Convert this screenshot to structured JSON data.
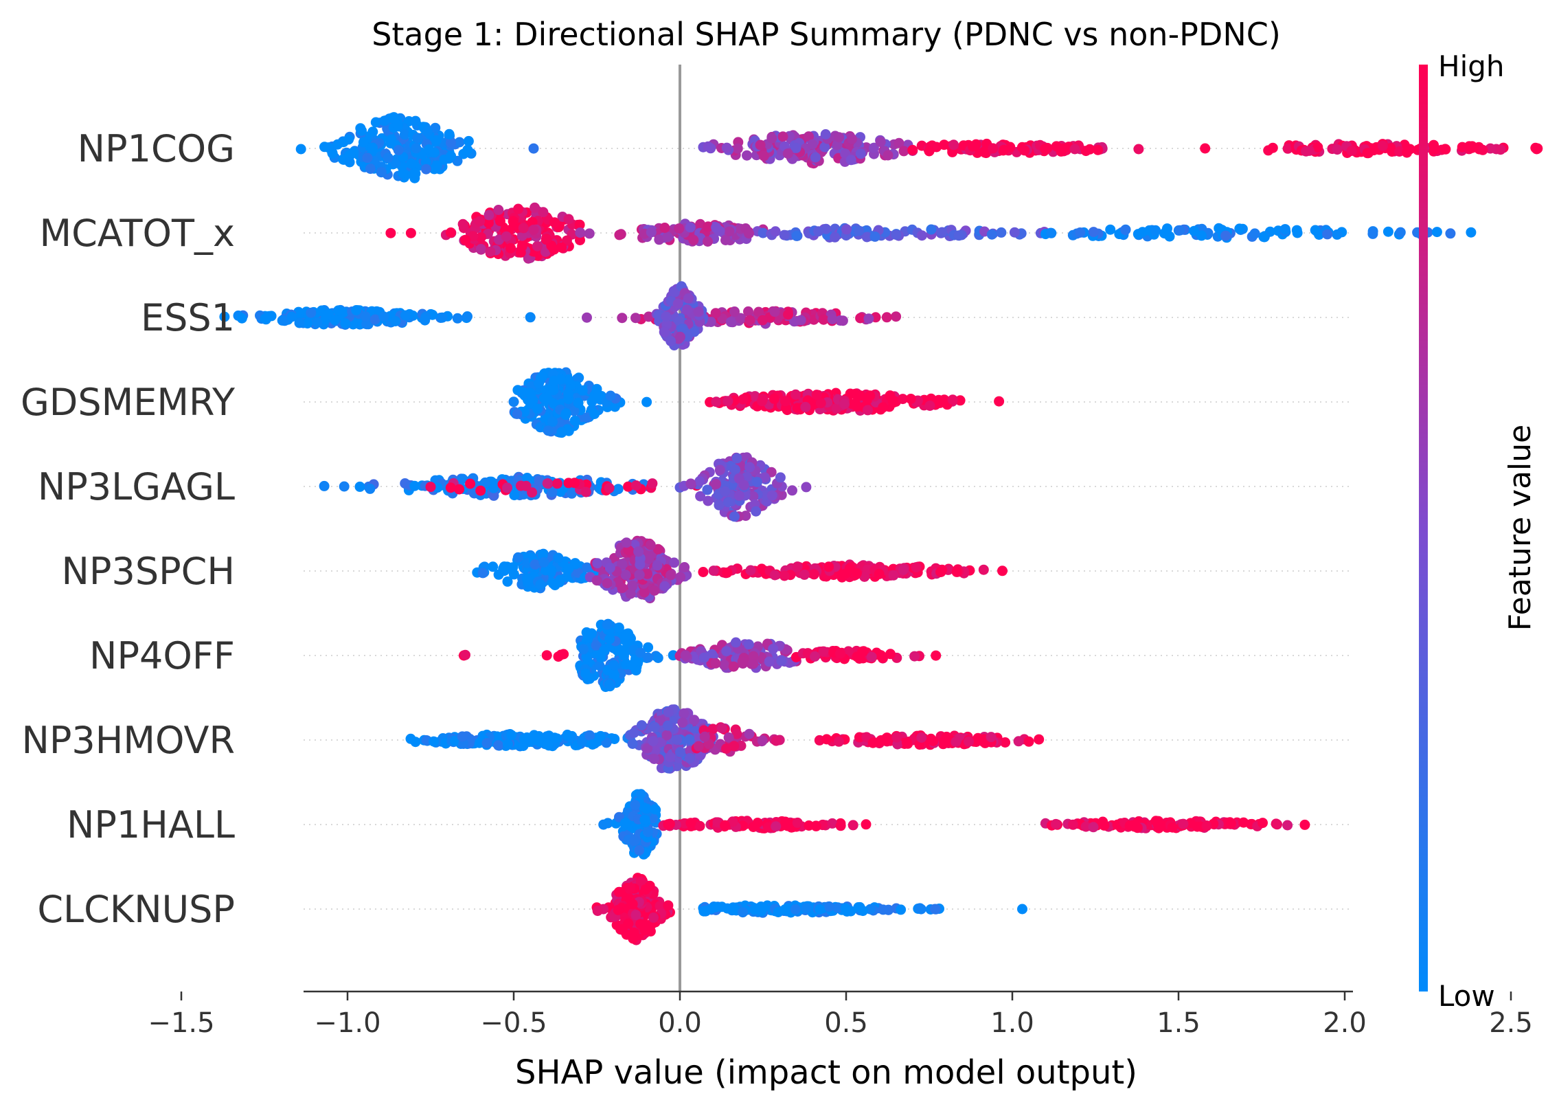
{
  "chart_data": {
    "type": "scatter",
    "subtype": "shap-beeswarm",
    "title": "Stage 1: Directional SHAP Summary (PDNC vs non-PDNC)",
    "xlabel": "SHAP value (impact on model output)",
    "xlim": [
      -1.57,
      2.78
    ],
    "xticks": [
      -1.5,
      -1.0,
      -0.5,
      0.0,
      0.5,
      1.0,
      1.5,
      2.0,
      2.5
    ],
    "xtick_labels": [
      "−1.5",
      "−1.0",
      "−0.5",
      "0.0",
      "0.5",
      "1.0",
      "1.5",
      "2.0",
      "2.5"
    ],
    "zero_line": 0.0,
    "colorbar": {
      "title": "Feature value",
      "high_label": "High",
      "low_label": "Low",
      "low_color": "#008bfb",
      "mid_color": "#7e4ccf",
      "high_color": "#ff0052"
    },
    "features": [
      {
        "name": "NP1COG",
        "clusters": [
          {
            "min": -1.14,
            "max": -0.44,
            "center": -0.84,
            "sigma": 0.1,
            "count": 200,
            "spread": 1.0,
            "color": 0.0
          },
          {
            "min": 0.07,
            "max": 0.7,
            "center": 0.4,
            "sigma": 0.14,
            "count": 150,
            "spread": 0.5,
            "color": 0.6
          },
          {
            "min": 0.7,
            "max": 1.38,
            "center": 0.95,
            "sigma": 0.2,
            "count": 90,
            "spread": 0.15,
            "color": 1.0
          },
          {
            "min": 1.58,
            "max": 1.58,
            "center": 1.58,
            "sigma": 0.01,
            "count": 1,
            "spread": 0.0,
            "color": 1.0
          },
          {
            "min": 1.77,
            "max": 2.58,
            "center": 2.05,
            "sigma": 0.22,
            "count": 90,
            "spread": 0.15,
            "color": 1.0
          }
        ]
      },
      {
        "name": "MCATOT_x",
        "clusters": [
          {
            "min": -0.87,
            "max": -0.3,
            "center": -0.48,
            "sigma": 0.1,
            "count": 180,
            "spread": 0.85,
            "color": 0.9
          },
          {
            "min": -0.3,
            "max": 0.25,
            "center": 0.05,
            "sigma": 0.12,
            "count": 100,
            "spread": 0.3,
            "color": 0.65
          },
          {
            "min": 0.25,
            "max": 1.1,
            "center": 0.55,
            "sigma": 0.25,
            "count": 80,
            "spread": 0.15,
            "color": 0.35
          },
          {
            "min": 1.1,
            "max": 2.38,
            "center": 1.6,
            "sigma": 0.3,
            "count": 90,
            "spread": 0.15,
            "color": 0.05
          }
        ]
      },
      {
        "name": "ESS1",
        "clusters": [
          {
            "min": -1.37,
            "max": -0.45,
            "center": -1.0,
            "sigma": 0.15,
            "count": 150,
            "spread": 0.25,
            "color": 0.0
          },
          {
            "min": -0.28,
            "max": 0.65,
            "center": 0.25,
            "sigma": 0.18,
            "count": 110,
            "spread": 0.2,
            "color": 0.75
          },
          {
            "min": -0.07,
            "max": 0.07,
            "center": 0.0,
            "sigma": 0.03,
            "count": 120,
            "spread": 1.0,
            "color": 0.45
          }
        ]
      },
      {
        "name": "GDSMEMRY",
        "clusters": [
          {
            "min": -0.5,
            "max": -0.1,
            "center": -0.37,
            "sigma": 0.07,
            "count": 200,
            "spread": 1.0,
            "color": 0.0
          },
          {
            "min": 0.09,
            "max": 0.96,
            "center": 0.45,
            "sigma": 0.18,
            "count": 180,
            "spread": 0.3,
            "color": 1.0
          }
        ]
      },
      {
        "name": "NP3LGAGL",
        "clusters": [
          {
            "min": -1.07,
            "max": -0.1,
            "center": -0.5,
            "sigma": 0.2,
            "count": 150,
            "spread": 0.3,
            "color": 0.1
          },
          {
            "min": -0.75,
            "max": 0.05,
            "center": -0.4,
            "sigma": 0.2,
            "count": 30,
            "spread": 0.2,
            "color": 0.95
          },
          {
            "min": 0.0,
            "max": 0.38,
            "center": 0.18,
            "sigma": 0.06,
            "count": 150,
            "spread": 1.0,
            "color": 0.5
          }
        ]
      },
      {
        "name": "NP3SPCH",
        "clusters": [
          {
            "min": -0.61,
            "max": -0.25,
            "center": -0.42,
            "sigma": 0.08,
            "count": 120,
            "spread": 0.55,
            "color": 0.0
          },
          {
            "min": -0.27,
            "max": 0.02,
            "center": -0.13,
            "sigma": 0.06,
            "count": 180,
            "spread": 1.0,
            "color": 0.65
          },
          {
            "min": 0.07,
            "max": 0.97,
            "center": 0.5,
            "sigma": 0.2,
            "count": 160,
            "spread": 0.2,
            "color": 1.0
          }
        ]
      },
      {
        "name": "NP4OFF",
        "clusters": [
          {
            "min": -0.65,
            "max": -0.35,
            "center": -0.5,
            "sigma": 0.1,
            "count": 6,
            "spread": 0.1,
            "color": 1.0
          },
          {
            "min": -0.3,
            "max": 0.0,
            "center": -0.22,
            "sigma": 0.06,
            "count": 170,
            "spread": 1.0,
            "color": 0.0
          },
          {
            "min": 0.0,
            "max": 0.35,
            "center": 0.2,
            "sigma": 0.09,
            "count": 110,
            "spread": 0.45,
            "color": 0.6
          },
          {
            "min": 0.35,
            "max": 0.77,
            "center": 0.5,
            "sigma": 0.12,
            "count": 60,
            "spread": 0.15,
            "color": 1.0
          }
        ]
      },
      {
        "name": "NP3HMOVR",
        "clusters": [
          {
            "min": -0.81,
            "max": -0.15,
            "center": -0.45,
            "sigma": 0.18,
            "count": 150,
            "spread": 0.2,
            "color": 0.0
          },
          {
            "min": -0.15,
            "max": 0.1,
            "center": -0.02,
            "sigma": 0.06,
            "count": 170,
            "spread": 1.0,
            "color": 0.45
          },
          {
            "min": 0.05,
            "max": 0.3,
            "center": 0.12,
            "sigma": 0.06,
            "count": 40,
            "spread": 0.4,
            "color": 0.8
          },
          {
            "min": 0.42,
            "max": 1.08,
            "center": 0.75,
            "sigma": 0.16,
            "count": 110,
            "spread": 0.15,
            "color": 1.0
          }
        ]
      },
      {
        "name": "NP1HALL",
        "clusters": [
          {
            "min": -0.23,
            "max": -0.07,
            "center": -0.12,
            "sigma": 0.03,
            "count": 150,
            "spread": 1.0,
            "color": 0.0
          },
          {
            "min": -0.05,
            "max": 0.56,
            "center": 0.22,
            "sigma": 0.14,
            "count": 90,
            "spread": 0.12,
            "color": 1.0
          },
          {
            "min": 1.1,
            "max": 1.88,
            "center": 1.45,
            "sigma": 0.2,
            "count": 110,
            "spread": 0.12,
            "color": 1.0
          }
        ]
      },
      {
        "name": "CLCKNUSP",
        "clusters": [
          {
            "min": -0.25,
            "max": -0.03,
            "center": -0.13,
            "sigma": 0.04,
            "count": 180,
            "spread": 1.0,
            "color": 1.0
          },
          {
            "min": 0.07,
            "max": 0.78,
            "center": 0.3,
            "sigma": 0.18,
            "count": 140,
            "spread": 0.12,
            "color": 0.0
          },
          {
            "min": 1.03,
            "max": 1.03,
            "center": 1.03,
            "sigma": 0.01,
            "count": 1,
            "spread": 0.0,
            "color": 0.0
          }
        ]
      }
    ]
  }
}
